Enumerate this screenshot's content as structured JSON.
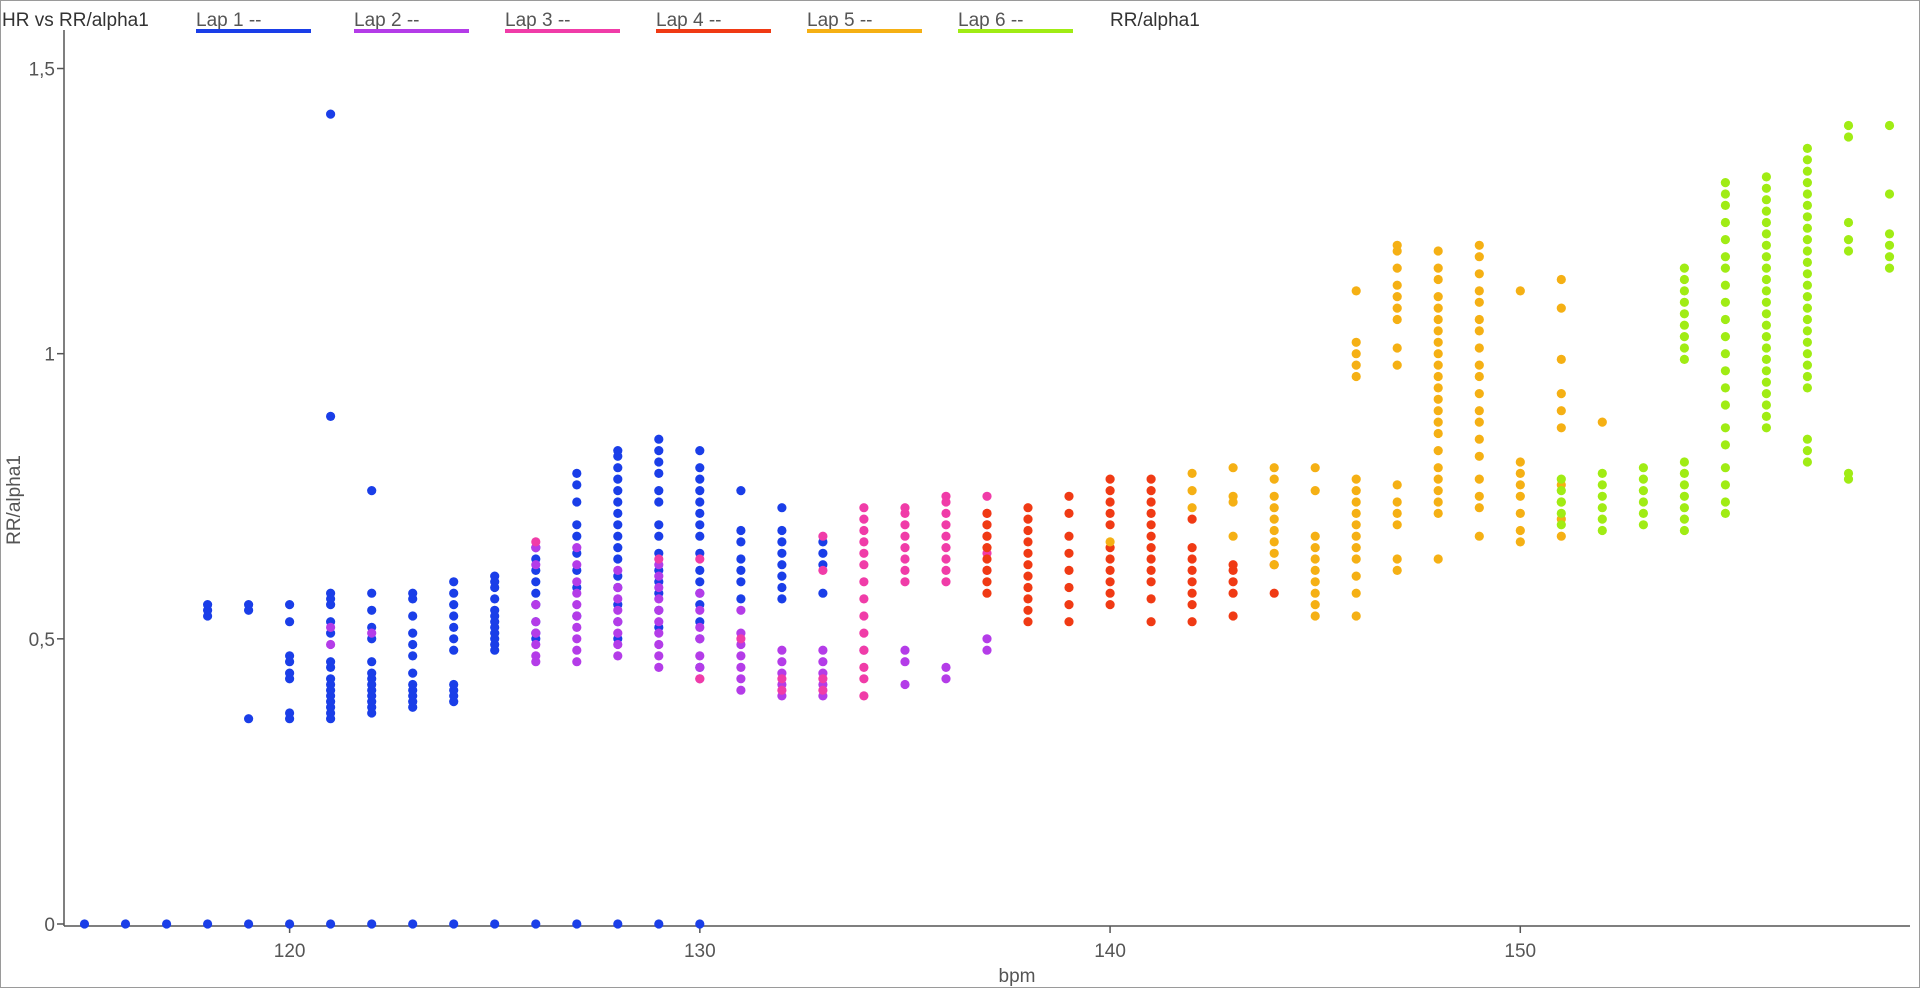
{
  "chart_data": {
    "type": "scatter",
    "title": "HR vs RR/alpha1",
    "xlabel": "bpm",
    "ylabel": "RR/alpha1",
    "xlim": [
      114.5,
      159.5
    ],
    "ylim": [
      0,
      1.55
    ],
    "x_ticks": [
      120,
      130,
      140,
      150
    ],
    "y_ticks": [
      0,
      0.5,
      1,
      1.5
    ],
    "y_tick_labels": [
      "0",
      "0,5",
      "1",
      "1,5"
    ],
    "legend_position": "top",
    "legend_extra": "RR/alpha1",
    "series": [
      {
        "name": "Lap 1",
        "suffix": "--",
        "color": "#1a3ee8",
        "groups": [
          {
            "x": 115,
            "y": [
              0
            ]
          },
          {
            "x": 116,
            "y": [
              0
            ]
          },
          {
            "x": 117,
            "y": [
              0
            ]
          },
          {
            "x": 118,
            "y": [
              0,
              0.54,
              0.55,
              0.56
            ]
          },
          {
            "x": 119,
            "y": [
              0,
              0.36,
              0.55,
              0.56
            ]
          },
          {
            "x": 120,
            "y": [
              0,
              0.36,
              0.37,
              0.43,
              0.44,
              0.46,
              0.47,
              0.53,
              0.56
            ]
          },
          {
            "x": 121,
            "y": [
              0,
              0.36,
              0.37,
              0.38,
              0.39,
              0.4,
              0.41,
              0.42,
              0.43,
              0.45,
              0.46,
              0.51,
              0.53,
              0.56,
              0.57,
              0.58,
              0.89,
              1.42
            ]
          },
          {
            "x": 122,
            "y": [
              0,
              0.37,
              0.38,
              0.39,
              0.4,
              0.41,
              0.42,
              0.43,
              0.44,
              0.46,
              0.5,
              0.52,
              0.55,
              0.58,
              0.76
            ]
          },
          {
            "x": 123,
            "y": [
              0,
              0.38,
              0.39,
              0.4,
              0.41,
              0.42,
              0.44,
              0.47,
              0.49,
              0.51,
              0.54,
              0.57,
              0.58
            ]
          },
          {
            "x": 124,
            "y": [
              0,
              0.39,
              0.4,
              0.41,
              0.42,
              0.48,
              0.5,
              0.52,
              0.54,
              0.56,
              0.58,
              0.6
            ]
          },
          {
            "x": 125,
            "y": [
              0,
              0.48,
              0.49,
              0.5,
              0.51,
              0.52,
              0.53,
              0.54,
              0.55,
              0.57,
              0.59,
              0.6,
              0.61
            ]
          },
          {
            "x": 126,
            "y": [
              0,
              0.5,
              0.51,
              0.53,
              0.56,
              0.58,
              0.6,
              0.62,
              0.64,
              0.66
            ]
          },
          {
            "x": 127,
            "y": [
              0,
              0.54,
              0.59,
              0.62,
              0.65,
              0.68,
              0.7,
              0.74,
              0.77,
              0.79
            ]
          },
          {
            "x": 128,
            "y": [
              0,
              0.5,
              0.53,
              0.56,
              0.59,
              0.61,
              0.64,
              0.66,
              0.68,
              0.7,
              0.72,
              0.74,
              0.76,
              0.78,
              0.8,
              0.82,
              0.83
            ]
          },
          {
            "x": 129,
            "y": [
              0,
              0.52,
              0.55,
              0.58,
              0.6,
              0.62,
              0.65,
              0.68,
              0.7,
              0.74,
              0.76,
              0.79,
              0.81,
              0.83,
              0.85
            ]
          },
          {
            "x": 130,
            "y": [
              0,
              0.45,
              0.5,
              0.53,
              0.56,
              0.58,
              0.6,
              0.62,
              0.65,
              0.68,
              0.7,
              0.72,
              0.74,
              0.76,
              0.78,
              0.8,
              0.83
            ]
          },
          {
            "x": 131,
            "y": [
              0.57,
              0.6,
              0.62,
              0.64,
              0.67,
              0.69,
              0.76
            ]
          },
          {
            "x": 132,
            "y": [
              0.57,
              0.59,
              0.61,
              0.63,
              0.65,
              0.67,
              0.69,
              0.73
            ]
          },
          {
            "x": 133,
            "y": [
              0.58,
              0.63,
              0.65,
              0.67
            ]
          }
        ]
      },
      {
        "name": "Lap 2",
        "suffix": "--",
        "color": "#b43ce8",
        "groups": [
          {
            "x": 121,
            "y": [
              0.49,
              0.52
            ]
          },
          {
            "x": 122,
            "y": [
              0.51
            ]
          },
          {
            "x": 126,
            "y": [
              0.46,
              0.47,
              0.49,
              0.51,
              0.53,
              0.56,
              0.63,
              0.66
            ]
          },
          {
            "x": 127,
            "y": [
              0.46,
              0.48,
              0.5,
              0.52,
              0.54,
              0.56,
              0.58,
              0.6,
              0.63,
              0.66
            ]
          },
          {
            "x": 128,
            "y": [
              0.47,
              0.49,
              0.51,
              0.53,
              0.55,
              0.57,
              0.59,
              0.62
            ]
          },
          {
            "x": 129,
            "y": [
              0.45,
              0.47,
              0.49,
              0.51,
              0.53,
              0.55,
              0.57,
              0.59,
              0.61,
              0.63
            ]
          },
          {
            "x": 130,
            "y": [
              0.43,
              0.45,
              0.47,
              0.5,
              0.52,
              0.55,
              0.58
            ]
          },
          {
            "x": 131,
            "y": [
              0.41,
              0.43,
              0.45,
              0.47,
              0.49,
              0.51,
              0.55
            ]
          },
          {
            "x": 132,
            "y": [
              0.4,
              0.42,
              0.44,
              0.46,
              0.48
            ]
          },
          {
            "x": 133,
            "y": [
              0.4,
              0.42,
              0.44,
              0.46,
              0.48
            ]
          },
          {
            "x": 134,
            "y": [
              0.48
            ]
          },
          {
            "x": 135,
            "y": [
              0.42,
              0.46,
              0.48
            ]
          },
          {
            "x": 136,
            "y": [
              0.43,
              0.45
            ]
          },
          {
            "x": 137,
            "y": [
              0.48,
              0.5
            ]
          }
        ]
      },
      {
        "name": "Lap 3",
        "suffix": "--",
        "color": "#f03ca8",
        "groups": [
          {
            "x": 126,
            "y": [
              0.67
            ]
          },
          {
            "x": 129,
            "y": [
              0.64
            ]
          },
          {
            "x": 130,
            "y": [
              0.43,
              0.64
            ]
          },
          {
            "x": 131,
            "y": [
              0.5
            ]
          },
          {
            "x": 132,
            "y": [
              0.41,
              0.43
            ]
          },
          {
            "x": 133,
            "y": [
              0.41,
              0.43,
              0.62,
              0.68
            ]
          },
          {
            "x": 134,
            "y": [
              0.4,
              0.43,
              0.45,
              0.48,
              0.51,
              0.54,
              0.57,
              0.6,
              0.63,
              0.65,
              0.67,
              0.69,
              0.71,
              0.73
            ]
          },
          {
            "x": 135,
            "y": [
              0.6,
              0.62,
              0.64,
              0.66,
              0.68,
              0.7,
              0.72,
              0.73
            ]
          },
          {
            "x": 136,
            "y": [
              0.6,
              0.62,
              0.64,
              0.66,
              0.68,
              0.7,
              0.72,
              0.74,
              0.75
            ]
          },
          {
            "x": 137,
            "y": [
              0.62,
              0.65,
              0.68,
              0.7,
              0.72,
              0.75
            ]
          }
        ]
      },
      {
        "name": "Lap 4",
        "suffix": "--",
        "color": "#f03a14",
        "groups": [
          {
            "x": 137,
            "y": [
              0.58,
              0.6,
              0.62,
              0.64,
              0.66,
              0.68,
              0.7,
              0.72
            ]
          },
          {
            "x": 138,
            "y": [
              0.53,
              0.55,
              0.57,
              0.59,
              0.61,
              0.63,
              0.65,
              0.67,
              0.69,
              0.71,
              0.73
            ]
          },
          {
            "x": 139,
            "y": [
              0.53,
              0.56,
              0.59,
              0.62,
              0.65,
              0.68,
              0.72,
              0.75
            ]
          },
          {
            "x": 140,
            "y": [
              0.56,
              0.58,
              0.6,
              0.62,
              0.64,
              0.66,
              0.7,
              0.72,
              0.74,
              0.76,
              0.78
            ]
          },
          {
            "x": 141,
            "y": [
              0.53,
              0.57,
              0.6,
              0.62,
              0.64,
              0.66,
              0.68,
              0.7,
              0.72,
              0.74,
              0.76,
              0.78
            ]
          },
          {
            "x": 142,
            "y": [
              0.53,
              0.56,
              0.58,
              0.6,
              0.62,
              0.64,
              0.66,
              0.71
            ]
          },
          {
            "x": 143,
            "y": [
              0.54,
              0.58,
              0.6,
              0.62,
              0.63
            ]
          },
          {
            "x": 144,
            "y": [
              0.58,
              0.63
            ]
          }
        ]
      },
      {
        "name": "Lap 5",
        "suffix": "--",
        "color": "#f5b014",
        "groups": [
          {
            "x": 140,
            "y": [
              0.67
            ]
          },
          {
            "x": 142,
            "y": [
              0.73,
              0.76,
              0.79
            ]
          },
          {
            "x": 143,
            "y": [
              0.68,
              0.74,
              0.75,
              0.8
            ]
          },
          {
            "x": 144,
            "y": [
              0.63,
              0.65,
              0.67,
              0.69,
              0.71,
              0.73,
              0.75,
              0.78,
              0.8
            ]
          },
          {
            "x": 145,
            "y": [
              0.54,
              0.56,
              0.58,
              0.6,
              0.62,
              0.64,
              0.66,
              0.68,
              0.76,
              0.8
            ]
          },
          {
            "x": 146,
            "y": [
              0.54,
              0.58,
              0.61,
              0.64,
              0.66,
              0.68,
              0.7,
              0.72,
              0.74,
              0.76,
              0.78,
              0.96,
              0.98,
              1.0,
              1.02,
              1.11
            ]
          },
          {
            "x": 147,
            "y": [
              0.62,
              0.64,
              0.7,
              0.72,
              0.74,
              0.77,
              0.98,
              1.01,
              1.06,
              1.08,
              1.1,
              1.12,
              1.15,
              1.18,
              1.19
            ]
          },
          {
            "x": 148,
            "y": [
              0.64,
              0.72,
              0.74,
              0.76,
              0.78,
              0.8,
              0.83,
              0.86,
              0.88,
              0.9,
              0.92,
              0.94,
              0.96,
              0.98,
              1.0,
              1.02,
              1.04,
              1.06,
              1.08,
              1.1,
              1.13,
              1.15,
              1.18
            ]
          },
          {
            "x": 149,
            "y": [
              0.68,
              0.73,
              0.75,
              0.78,
              0.82,
              0.85,
              0.88,
              0.9,
              0.93,
              0.96,
              0.98,
              1.01,
              1.04,
              1.06,
              1.09,
              1.11,
              1.14,
              1.17,
              1.19
            ]
          },
          {
            "x": 150,
            "y": [
              0.67,
              0.69,
              0.72,
              0.75,
              0.77,
              0.79,
              0.81,
              1.11
            ]
          },
          {
            "x": 151,
            "y": [
              0.68,
              0.71,
              0.74,
              0.77,
              0.87,
              0.9,
              0.93,
              0.99,
              1.08,
              1.13
            ]
          },
          {
            "x": 152,
            "y": [
              0.88
            ]
          }
        ]
      },
      {
        "name": "Lap 6",
        "suffix": "--",
        "color": "#a0ec14",
        "groups": [
          {
            "x": 151,
            "y": [
              0.7,
              0.72,
              0.74,
              0.76,
              0.78
            ]
          },
          {
            "x": 152,
            "y": [
              0.69,
              0.71,
              0.73,
              0.75,
              0.77,
              0.79
            ]
          },
          {
            "x": 153,
            "y": [
              0.7,
              0.72,
              0.74,
              0.76,
              0.78,
              0.8
            ]
          },
          {
            "x": 154,
            "y": [
              0.69,
              0.71,
              0.73,
              0.75,
              0.77,
              0.79,
              0.81,
              0.99,
              1.01,
              1.03,
              1.05,
              1.07,
              1.09,
              1.11,
              1.13,
              1.15
            ]
          },
          {
            "x": 155,
            "y": [
              0.72,
              0.74,
              0.77,
              0.8,
              0.84,
              0.87,
              0.91,
              0.94,
              0.97,
              1.0,
              1.03,
              1.06,
              1.09,
              1.12,
              1.15,
              1.17,
              1.2,
              1.23,
              1.26,
              1.28,
              1.3
            ]
          },
          {
            "x": 156,
            "y": [
              0.87,
              0.89,
              0.91,
              0.93,
              0.95,
              0.97,
              0.99,
              1.01,
              1.03,
              1.05,
              1.07,
              1.09,
              1.11,
              1.13,
              1.15,
              1.17,
              1.19,
              1.21,
              1.23,
              1.25,
              1.27,
              1.29,
              1.31
            ]
          },
          {
            "x": 157,
            "y": [
              0.81,
              0.83,
              0.85,
              0.94,
              0.96,
              0.98,
              1.0,
              1.02,
              1.04,
              1.06,
              1.08,
              1.1,
              1.12,
              1.14,
              1.16,
              1.18,
              1.2,
              1.22,
              1.24,
              1.26,
              1.28,
              1.3,
              1.32,
              1.34,
              1.36
            ]
          },
          {
            "x": 158,
            "y": [
              0.78,
              0.79,
              1.18,
              1.2,
              1.23,
              1.38,
              1.4
            ]
          },
          {
            "x": 159,
            "y": [
              1.15,
              1.17,
              1.19,
              1.21,
              1.28,
              1.4
            ]
          }
        ]
      }
    ]
  }
}
